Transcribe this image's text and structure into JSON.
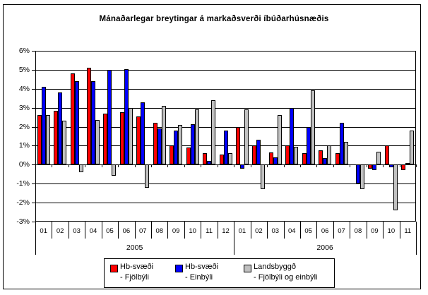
{
  "window": {
    "background": "#FFFFFF",
    "border_color": "#000000"
  },
  "chart_data": {
    "type": "bar",
    "title": "Mánaðarlegar breytingar á markaðsverði íbúðarhúsnæðis",
    "xlabel": "",
    "ylabel": "",
    "grid": true,
    "legend_position": "bottom",
    "y_axis": {
      "unit": "%",
      "max": 6,
      "min": -3,
      "step": 1,
      "tick_labels": [
        "6%",
        "5%",
        "4%",
        "3%",
        "2%",
        "1%",
        "0%",
        "-1%",
        "-2%",
        "-3%"
      ]
    },
    "categories": [
      "01",
      "02",
      "03",
      "04",
      "05",
      "06",
      "07",
      "08",
      "09",
      "10",
      "11",
      "12",
      "01",
      "02",
      "03",
      "04",
      "05",
      "06",
      "07",
      "08",
      "09",
      "10",
      "11"
    ],
    "year_groups": [
      {
        "label": "2005",
        "count": 12
      },
      {
        "label": "2006",
        "count": 11
      }
    ],
    "series": [
      {
        "key": "hb-svaedi-fjolbyli",
        "name": "Hb-svæði",
        "qualifier": "- Fjölbýli",
        "color": "#FF0000",
        "values": [
          2.6,
          2.85,
          4.8,
          5.1,
          2.7,
          2.75,
          2.55,
          2.2,
          1.0,
          0.9,
          0.6,
          0.55,
          2.0,
          1.0,
          0.65,
          1.0,
          0.6,
          0.75,
          0.6,
          0.0,
          -0.2,
          1.0,
          -0.3
        ]
      },
      {
        "key": "hb-svaedi-einbyli",
        "name": "Hb-svæði",
        "qualifier": "- Einbýli",
        "color": "#0000FF",
        "values": [
          4.1,
          3.8,
          4.4,
          4.4,
          5.0,
          5.05,
          3.3,
          1.9,
          1.8,
          2.15,
          0.2,
          1.8,
          -0.2,
          1.3,
          0.4,
          3.0,
          2.0,
          0.35,
          2.2,
          -1.0,
          -0.3,
          -0.15,
          0.1
        ]
      },
      {
        "key": "landsbyggd-fjolbyli-og-einbyli",
        "name": "Landsbyggð",
        "qualifier": "- Fjölbýli og einbýli",
        "color": "#C0C0C0",
        "values": [
          2.6,
          2.3,
          -0.4,
          2.35,
          -0.6,
          3.0,
          -1.2,
          3.1,
          2.1,
          2.9,
          3.4,
          0.6,
          2.9,
          -1.3,
          2.6,
          0.95,
          3.9,
          1.0,
          1.2,
          -1.3,
          0.7,
          -2.4,
          1.8
        ]
      }
    ]
  }
}
